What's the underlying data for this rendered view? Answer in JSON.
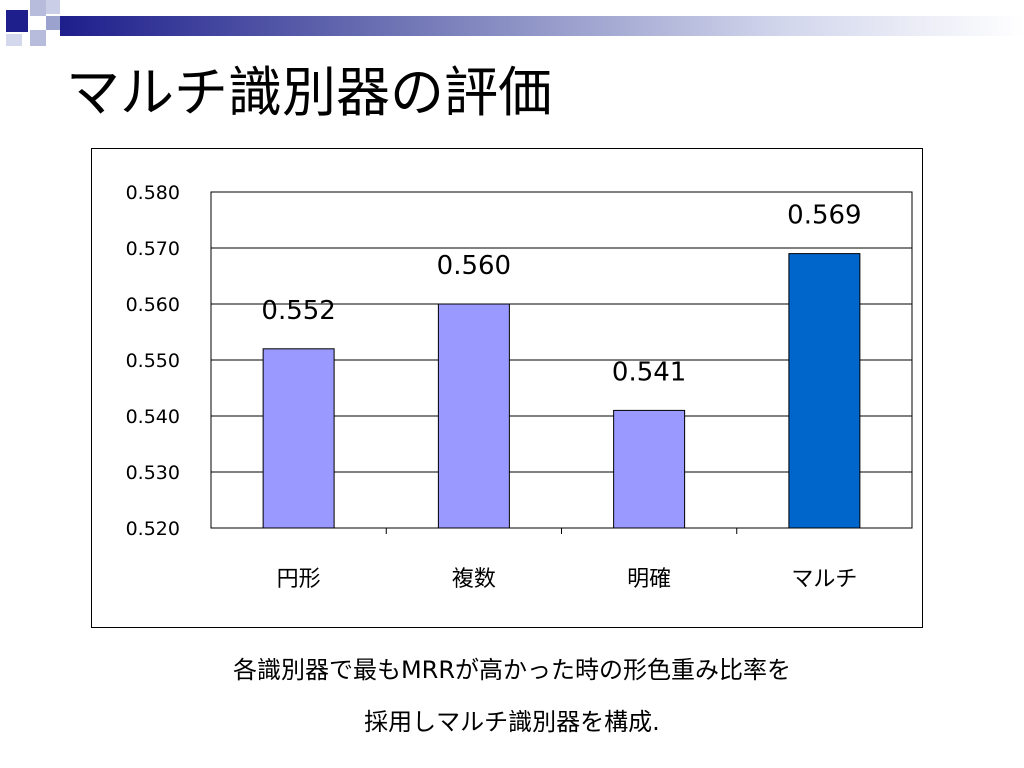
{
  "slide": {
    "title": "マルチ識別器の評価",
    "caption_line1": "各識別器で最もMRRが高かった時の形色重み比率を",
    "caption_line2": "採用しマルチ識別器を構成."
  },
  "colors": {
    "bar_default": "#9999FF",
    "bar_highlight": "#0066CC",
    "header_dark": "#1E1E8C",
    "header_light": "#AEB4D8"
  },
  "chart_data": {
    "type": "bar",
    "title": "",
    "xlabel": "",
    "ylabel": "",
    "categories": [
      "円形",
      "複数",
      "明確",
      "マルチ"
    ],
    "values": [
      0.552,
      0.56,
      0.541,
      0.569
    ],
    "value_labels": [
      "0.552",
      "0.560",
      "0.541",
      "0.569"
    ],
    "highlight_index": 3,
    "ylim": [
      0.52,
      0.58
    ],
    "yticks": [
      "0.520",
      "0.530",
      "0.540",
      "0.550",
      "0.560",
      "0.570",
      "0.580"
    ],
    "grid": true,
    "legend": "none"
  }
}
